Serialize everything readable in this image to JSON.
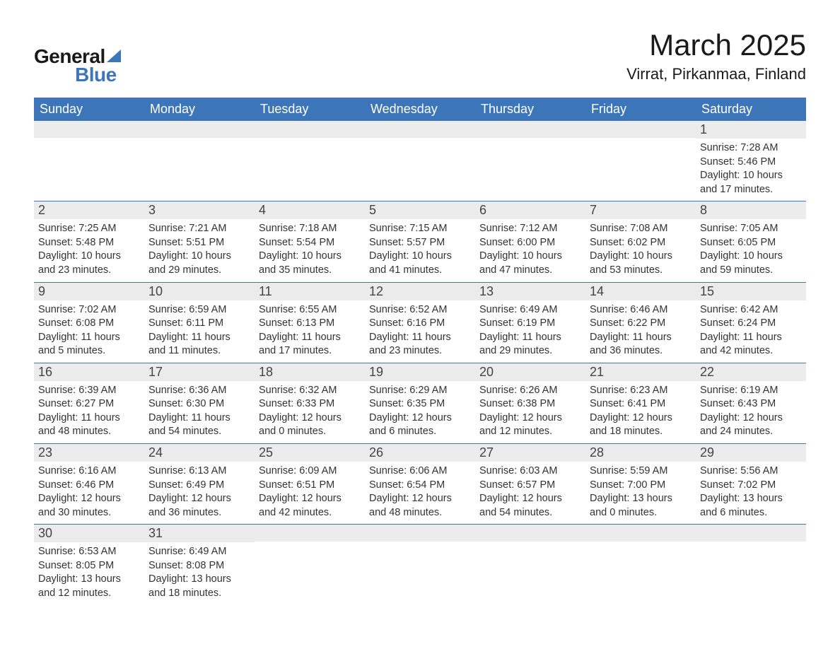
{
  "logo": {
    "text1": "General",
    "text2": "Blue",
    "accent_color": "#3d76b8"
  },
  "title": {
    "month_year": "March 2025",
    "location": "Virrat, Pirkanmaa, Finland"
  },
  "style": {
    "header_bg": "#3d76b8",
    "header_fg": "#ffffff",
    "daynum_bg": "#ececec",
    "week_border": "#3d76b8",
    "body_fontsize": 14.5,
    "daynum_fontsize": 18,
    "header_fontsize": 18,
    "title_fontsize": 42,
    "location_fontsize": 22
  },
  "day_headers": [
    "Sunday",
    "Monday",
    "Tuesday",
    "Wednesday",
    "Thursday",
    "Friday",
    "Saturday"
  ],
  "labels": {
    "sunrise": "Sunrise:",
    "sunset": "Sunset:",
    "daylight": "Daylight:"
  },
  "weeks": [
    [
      null,
      null,
      null,
      null,
      null,
      null,
      {
        "n": "1",
        "sunrise": "7:28 AM",
        "sunset": "5:46 PM",
        "daylight": "10 hours and 17 minutes."
      }
    ],
    [
      {
        "n": "2",
        "sunrise": "7:25 AM",
        "sunset": "5:48 PM",
        "daylight": "10 hours and 23 minutes."
      },
      {
        "n": "3",
        "sunrise": "7:21 AM",
        "sunset": "5:51 PM",
        "daylight": "10 hours and 29 minutes."
      },
      {
        "n": "4",
        "sunrise": "7:18 AM",
        "sunset": "5:54 PM",
        "daylight": "10 hours and 35 minutes."
      },
      {
        "n": "5",
        "sunrise": "7:15 AM",
        "sunset": "5:57 PM",
        "daylight": "10 hours and 41 minutes."
      },
      {
        "n": "6",
        "sunrise": "7:12 AM",
        "sunset": "6:00 PM",
        "daylight": "10 hours and 47 minutes."
      },
      {
        "n": "7",
        "sunrise": "7:08 AM",
        "sunset": "6:02 PM",
        "daylight": "10 hours and 53 minutes."
      },
      {
        "n": "8",
        "sunrise": "7:05 AM",
        "sunset": "6:05 PM",
        "daylight": "10 hours and 59 minutes."
      }
    ],
    [
      {
        "n": "9",
        "sunrise": "7:02 AM",
        "sunset": "6:08 PM",
        "daylight": "11 hours and 5 minutes."
      },
      {
        "n": "10",
        "sunrise": "6:59 AM",
        "sunset": "6:11 PM",
        "daylight": "11 hours and 11 minutes."
      },
      {
        "n": "11",
        "sunrise": "6:55 AM",
        "sunset": "6:13 PM",
        "daylight": "11 hours and 17 minutes."
      },
      {
        "n": "12",
        "sunrise": "6:52 AM",
        "sunset": "6:16 PM",
        "daylight": "11 hours and 23 minutes."
      },
      {
        "n": "13",
        "sunrise": "6:49 AM",
        "sunset": "6:19 PM",
        "daylight": "11 hours and 29 minutes."
      },
      {
        "n": "14",
        "sunrise": "6:46 AM",
        "sunset": "6:22 PM",
        "daylight": "11 hours and 36 minutes."
      },
      {
        "n": "15",
        "sunrise": "6:42 AM",
        "sunset": "6:24 PM",
        "daylight": "11 hours and 42 minutes."
      }
    ],
    [
      {
        "n": "16",
        "sunrise": "6:39 AM",
        "sunset": "6:27 PM",
        "daylight": "11 hours and 48 minutes."
      },
      {
        "n": "17",
        "sunrise": "6:36 AM",
        "sunset": "6:30 PM",
        "daylight": "11 hours and 54 minutes."
      },
      {
        "n": "18",
        "sunrise": "6:32 AM",
        "sunset": "6:33 PM",
        "daylight": "12 hours and 0 minutes."
      },
      {
        "n": "19",
        "sunrise": "6:29 AM",
        "sunset": "6:35 PM",
        "daylight": "12 hours and 6 minutes."
      },
      {
        "n": "20",
        "sunrise": "6:26 AM",
        "sunset": "6:38 PM",
        "daylight": "12 hours and 12 minutes."
      },
      {
        "n": "21",
        "sunrise": "6:23 AM",
        "sunset": "6:41 PM",
        "daylight": "12 hours and 18 minutes."
      },
      {
        "n": "22",
        "sunrise": "6:19 AM",
        "sunset": "6:43 PM",
        "daylight": "12 hours and 24 minutes."
      }
    ],
    [
      {
        "n": "23",
        "sunrise": "6:16 AM",
        "sunset": "6:46 PM",
        "daylight": "12 hours and 30 minutes."
      },
      {
        "n": "24",
        "sunrise": "6:13 AM",
        "sunset": "6:49 PM",
        "daylight": "12 hours and 36 minutes."
      },
      {
        "n": "25",
        "sunrise": "6:09 AM",
        "sunset": "6:51 PM",
        "daylight": "12 hours and 42 minutes."
      },
      {
        "n": "26",
        "sunrise": "6:06 AM",
        "sunset": "6:54 PM",
        "daylight": "12 hours and 48 minutes."
      },
      {
        "n": "27",
        "sunrise": "6:03 AM",
        "sunset": "6:57 PM",
        "daylight": "12 hours and 54 minutes."
      },
      {
        "n": "28",
        "sunrise": "5:59 AM",
        "sunset": "7:00 PM",
        "daylight": "13 hours and 0 minutes."
      },
      {
        "n": "29",
        "sunrise": "5:56 AM",
        "sunset": "7:02 PM",
        "daylight": "13 hours and 6 minutes."
      }
    ],
    [
      {
        "n": "30",
        "sunrise": "6:53 AM",
        "sunset": "8:05 PM",
        "daylight": "13 hours and 12 minutes."
      },
      {
        "n": "31",
        "sunrise": "6:49 AM",
        "sunset": "8:08 PM",
        "daylight": "13 hours and 18 minutes."
      },
      null,
      null,
      null,
      null,
      null
    ]
  ]
}
